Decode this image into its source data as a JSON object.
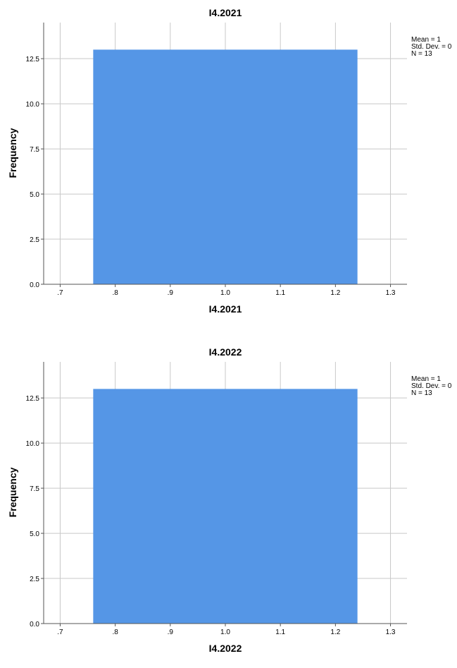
{
  "chart_data": [
    {
      "type": "bar",
      "title": "I4.2021",
      "xlabel": "I4.2021",
      "ylabel": "Frequency",
      "bins": [
        {
          "x0": 0.76,
          "x1": 1.24,
          "value": 13
        }
      ],
      "xlim": [
        0.67,
        1.33
      ],
      "ylim": [
        0,
        14.5
      ],
      "x_ticks": [
        0.7,
        0.8,
        0.9,
        1.0,
        1.1,
        1.2,
        1.3
      ],
      "x_tick_labels": [
        ".7",
        ".8",
        ".9",
        "1.0",
        "1.1",
        "1.2",
        "1.3"
      ],
      "y_ticks": [
        0,
        2.5,
        5,
        7.5,
        10,
        12.5
      ],
      "y_tick_labels": [
        "0.0",
        "2.5",
        "5.0",
        "7.5",
        "10.0",
        "12.5"
      ],
      "stats": [
        "Mean = 1",
        "Std. Dev. = 0",
        "N = 13"
      ],
      "bar_color": "#5596E6",
      "grid": true,
      "legend_position": "top-right"
    },
    {
      "type": "bar",
      "title": "I4.2022",
      "xlabel": "I4.2022",
      "ylabel": "Frequency",
      "bins": [
        {
          "x0": 0.76,
          "x1": 1.24,
          "value": 13
        }
      ],
      "xlim": [
        0.67,
        1.33
      ],
      "ylim": [
        0,
        14.5
      ],
      "x_ticks": [
        0.7,
        0.8,
        0.9,
        1.0,
        1.1,
        1.2,
        1.3
      ],
      "x_tick_labels": [
        ".7",
        ".8",
        ".9",
        "1.0",
        "1.1",
        "1.2",
        "1.3"
      ],
      "y_ticks": [
        0,
        2.5,
        5,
        7.5,
        10,
        12.5
      ],
      "y_tick_labels": [
        "0.0",
        "2.5",
        "5.0",
        "7.5",
        "10.0",
        "12.5"
      ],
      "stats": [
        "Mean = 1",
        "Std. Dev. = 0",
        "N = 13"
      ],
      "bar_color": "#5596E6",
      "grid": true,
      "legend_position": "top-right"
    }
  ]
}
